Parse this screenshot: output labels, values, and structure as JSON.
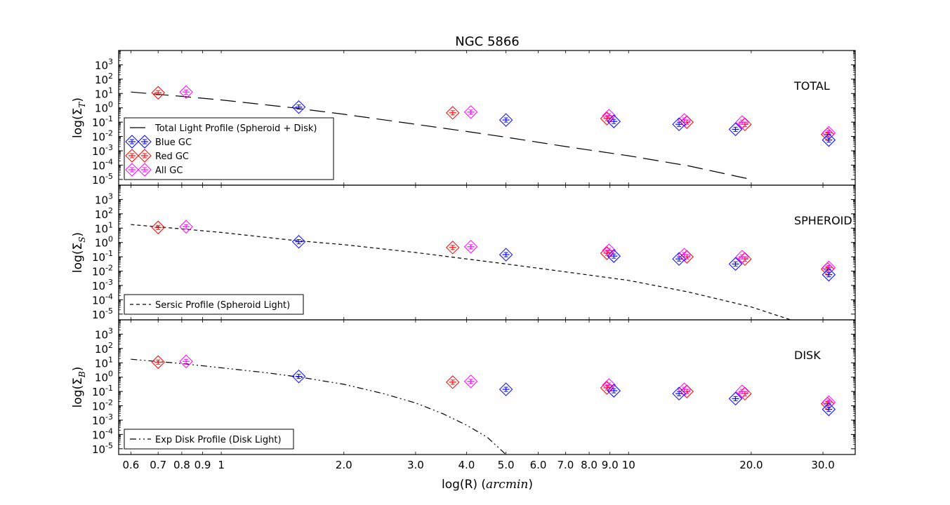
{
  "chart_data": {
    "type": "scatter",
    "title": "NGC 5866",
    "xlabel": "log(R) (arcmin)",
    "xlabel_text": "log(R) (",
    "xlabel_math": "arcmin",
    "xlabel_close": ")",
    "xscale": "log",
    "xlim": [
      0.56,
      36.0
    ],
    "x_ticks": [
      {
        "v": 0.6,
        "label": "0.6"
      },
      {
        "v": 0.7,
        "label": "0.7"
      },
      {
        "v": 0.8,
        "label": "0.8"
      },
      {
        "v": 0.9,
        "label": "0.9"
      },
      {
        "v": 1.0,
        "label": "1"
      },
      {
        "v": 2.0,
        "label": "2.0"
      },
      {
        "v": 3.0,
        "label": "3.0"
      },
      {
        "v": 4.0,
        "label": "4.0"
      },
      {
        "v": 5.0,
        "label": "5.0"
      },
      {
        "v": 6.0,
        "label": "6.0"
      },
      {
        "v": 7.0,
        "label": "7.0"
      },
      {
        "v": 8.0,
        "label": "8.0"
      },
      {
        "v": 9.0,
        "label": "9.0"
      },
      {
        "v": 10.0,
        "label": "10"
      },
      {
        "v": 20.0,
        "label": "20.0"
      },
      {
        "v": 30.0,
        "label": "30.0"
      }
    ],
    "yscale": "log",
    "ylim_exp": [
      -5.4,
      4.0
    ],
    "y_tick_exps": [
      -5,
      -4,
      -3,
      -2,
      -1,
      0,
      1,
      2,
      3
    ],
    "panels": [
      {
        "name": "total",
        "panel_label": "TOTAL",
        "ylabel_base": "log(Σ",
        "ylabel_sub": "T",
        "ylabel_close": ")",
        "line_style": "long-dash",
        "legend_entries": [
          {
            "kind": "line",
            "label": "Total Light Profile (Spheroid + Disk)"
          },
          {
            "kind": "marker",
            "series": "blue",
            "label": "Blue GC"
          },
          {
            "kind": "marker",
            "series": "red",
            "label": "Red GC"
          },
          {
            "kind": "marker",
            "series": "magenta",
            "label": "All GC"
          }
        ],
        "profile": {
          "x": [
            0.6,
            0.8,
            1.0,
            1.5,
            2.0,
            3.0,
            4.0,
            5.0,
            7.0,
            10.0,
            14.0,
            20.0
          ],
          "y_exp": [
            1.1,
            0.8,
            0.55,
            0.0,
            -0.45,
            -1.15,
            -1.65,
            -2.05,
            -2.7,
            -3.35,
            -4.05,
            -5.0
          ]
        },
        "blue": {
          "x": [
            1.55,
            5.0,
            9.2,
            13.3,
            18.3,
            31.0
          ],
          "y_exp": [
            0.05,
            -0.85,
            -0.95,
            -1.15,
            -1.5,
            -2.25
          ]
        },
        "red": {
          "x": [
            0.7,
            3.7,
            8.85,
            13.9,
            19.3,
            30.8
          ],
          "y_exp": [
            1.05,
            -0.35,
            -0.75,
            -1.0,
            -1.15,
            -1.85
          ]
        },
        "magenta": {
          "x": [
            0.82,
            4.1,
            8.95,
            13.7,
            19.0,
            31.0
          ],
          "y_exp": [
            1.1,
            -0.3,
            -0.55,
            -0.85,
            -1.0,
            -1.75
          ]
        }
      },
      {
        "name": "spheroid",
        "panel_label": "SPHEROID",
        "ylabel_base": "log(Σ",
        "ylabel_sub": "S",
        "ylabel_close": ")",
        "line_style": "short-dash",
        "legend_entries": [
          {
            "kind": "line",
            "label": "Sersic Profile (Spheroid Light)"
          }
        ],
        "profile": {
          "x": [
            0.6,
            0.8,
            1.0,
            1.5,
            2.0,
            3.0,
            4.0,
            5.0,
            7.0,
            10.0,
            14.0,
            20.0,
            25.0
          ],
          "y_exp": [
            1.25,
            0.95,
            0.7,
            0.15,
            -0.15,
            -0.7,
            -1.15,
            -1.5,
            -2.05,
            -2.65,
            -3.45,
            -4.5,
            -5.4
          ]
        },
        "blue": {
          "x": [
            1.55,
            5.0,
            9.2,
            13.3,
            18.3,
            31.0
          ],
          "y_exp": [
            0.05,
            -0.85,
            -0.95,
            -1.15,
            -1.5,
            -2.25
          ]
        },
        "red": {
          "x": [
            0.7,
            3.7,
            8.85,
            13.9,
            19.3,
            30.8
          ],
          "y_exp": [
            1.05,
            -0.35,
            -0.75,
            -1.0,
            -1.15,
            -1.85
          ]
        },
        "magenta": {
          "x": [
            0.82,
            4.1,
            8.95,
            13.7,
            19.0,
            31.0
          ],
          "y_exp": [
            1.1,
            -0.3,
            -0.55,
            -0.85,
            -1.0,
            -1.75
          ]
        }
      },
      {
        "name": "disk",
        "panel_label": "DISK",
        "ylabel_base": "log(Σ",
        "ylabel_sub": "B",
        "ylabel_close": ")",
        "line_style": "dash-dot-dot",
        "legend_entries": [
          {
            "kind": "line",
            "label": "Exp Disk Profile (Disk Light)"
          }
        ],
        "profile": {
          "x": [
            0.6,
            0.8,
            1.0,
            1.3,
            1.6,
            2.0,
            2.5,
            3.0,
            3.5,
            4.0,
            4.5,
            5.0
          ],
          "y_exp": [
            1.25,
            0.95,
            0.65,
            0.3,
            -0.05,
            -0.5,
            -1.15,
            -1.8,
            -2.55,
            -3.35,
            -4.2,
            -5.4
          ]
        },
        "blue": {
          "x": [
            1.55,
            5.0,
            9.2,
            13.3,
            18.3,
            31.0
          ],
          "y_exp": [
            0.05,
            -0.85,
            -0.95,
            -1.15,
            -1.5,
            -2.25
          ]
        },
        "red": {
          "x": [
            0.7,
            3.7,
            8.85,
            13.9,
            19.3,
            30.8
          ],
          "y_exp": [
            1.05,
            -0.35,
            -0.75,
            -1.0,
            -1.15,
            -1.85
          ]
        },
        "magenta": {
          "x": [
            0.82,
            4.1,
            8.95,
            13.7,
            19.0,
            31.0
          ],
          "y_exp": [
            1.1,
            -0.3,
            -0.55,
            -0.85,
            -1.0,
            -1.75
          ]
        }
      }
    ],
    "colors": {
      "blue": "#0000ff",
      "red": "#ff0000",
      "magenta": "#ff00ff",
      "profile": "#000000"
    },
    "grid": false,
    "legend_placement": "lower-left"
  }
}
